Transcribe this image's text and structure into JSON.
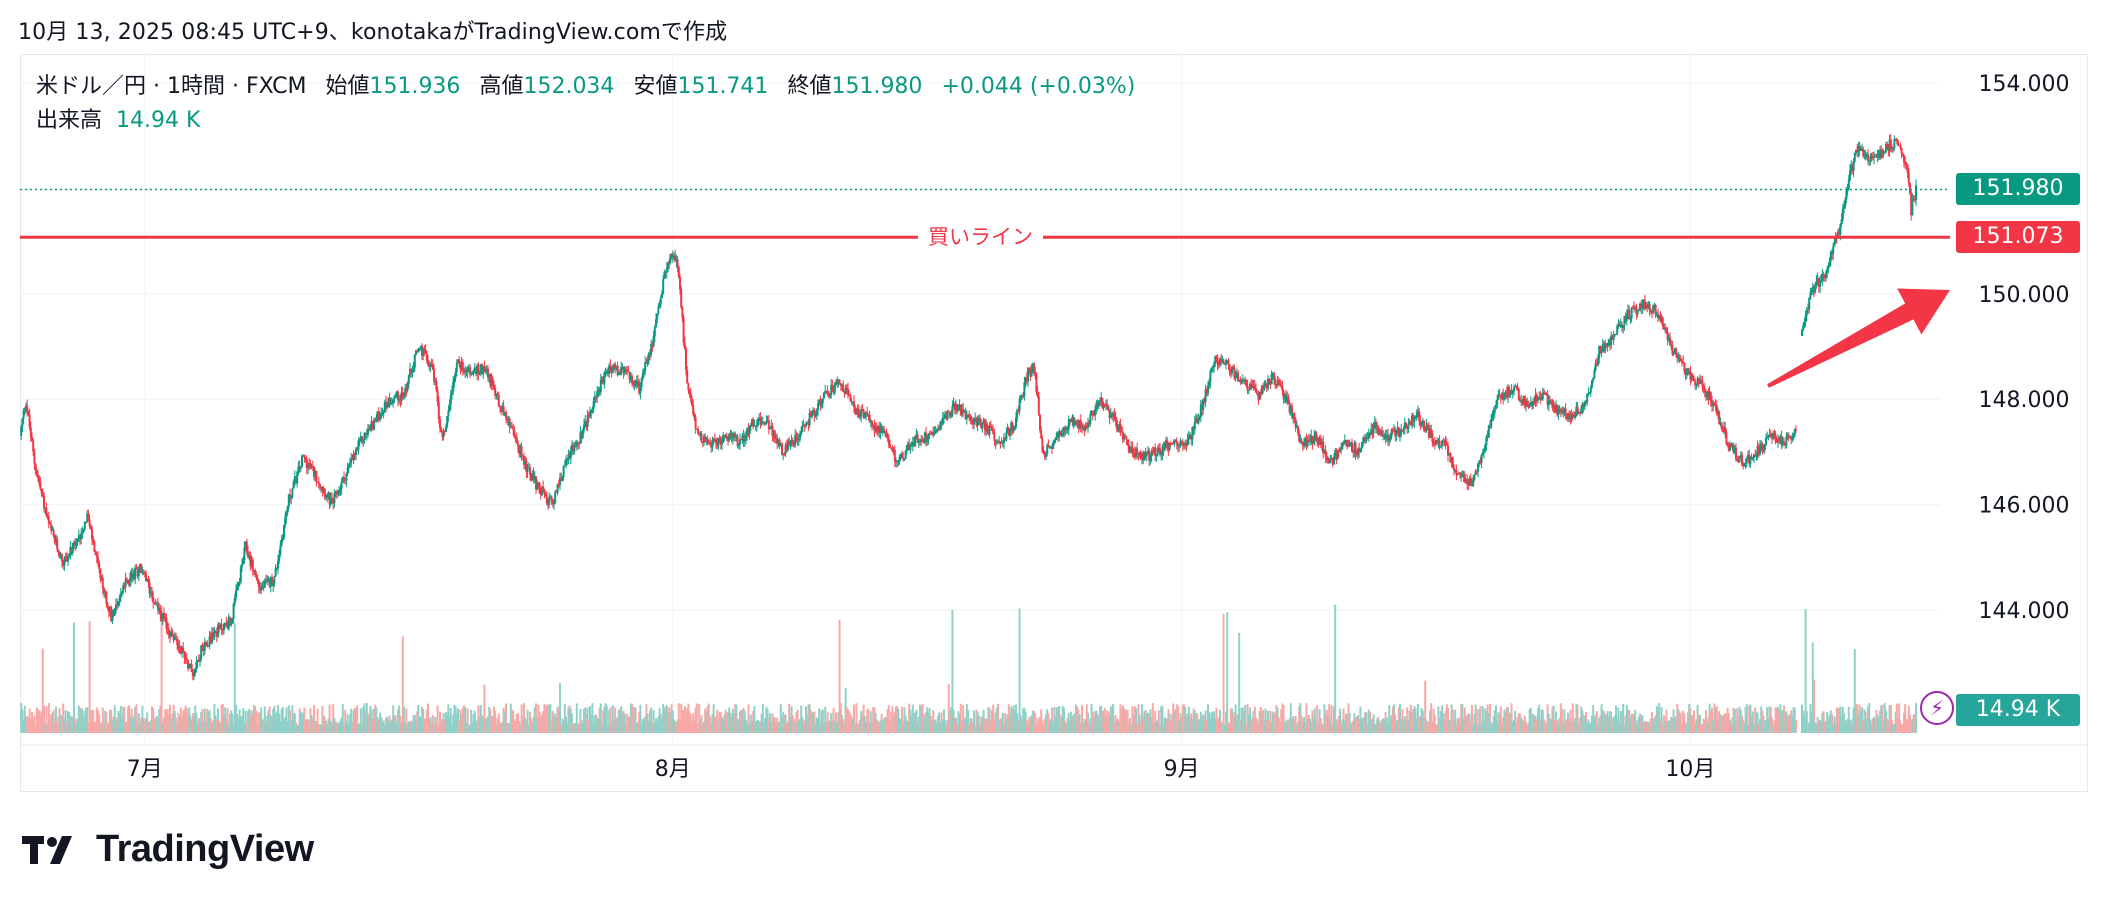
{
  "header": {
    "text": "10月 13, 2025 08:45 UTC+9、konotakaがTradingView.comで作成"
  },
  "legend": {
    "symbol": "米ドル／円 · 1時間 · FXCM",
    "open_label": "始値",
    "open": "151.936",
    "high_label": "高値",
    "high": "152.034",
    "low_label": "安値",
    "low": "151.741",
    "close_label": "終値",
    "close": "151.980",
    "change": "+0.044 (+0.03%)",
    "volume_label": "出来高",
    "volume": "14.94 K"
  },
  "price_tags": {
    "last": "151.980",
    "buy_line": "151.073",
    "volume": "14.94 K"
  },
  "buy_line_label": "買いライン",
  "colors": {
    "up": "#089981",
    "down": "#f23645",
    "buy_line": "#f23645",
    "arrow": "#f23645",
    "volume_up": "#8fd1c8",
    "volume_down": "#f7a9a7",
    "grid": "#f0f3fa",
    "axis_text": "#131722"
  },
  "logo": {
    "text": "TradingView"
  },
  "chart_data": {
    "type": "candlestick",
    "timeframe": "1時間",
    "y_ticks": [
      "154.000",
      "150.000",
      "148.000",
      "146.000",
      "144.000"
    ],
    "ylim": [
      142.2,
      154.5
    ],
    "x_ticks": [
      "7月",
      "8月",
      "9月",
      "10月"
    ],
    "last_price": 151.98,
    "buy_line": 151.073,
    "path": [
      [
        0,
        147.3
      ],
      [
        0.6,
        148.0
      ],
      [
        1.5,
        146.8
      ],
      [
        3,
        145.6
      ],
      [
        4.5,
        144.9
      ],
      [
        6,
        145.3
      ],
      [
        7,
        145.8
      ],
      [
        8.5,
        144.5
      ],
      [
        9.5,
        143.9
      ],
      [
        11,
        144.5
      ],
      [
        12.5,
        144.8
      ],
      [
        14,
        144.2
      ],
      [
        15.5,
        143.6
      ],
      [
        17,
        143.2
      ],
      [
        18,
        142.8
      ],
      [
        19,
        143.3
      ],
      [
        20.5,
        143.6
      ],
      [
        22,
        143.8
      ],
      [
        23.5,
        145.2
      ],
      [
        25,
        144.4
      ],
      [
        26.5,
        144.6
      ],
      [
        28,
        146.1
      ],
      [
        29.5,
        146.9
      ],
      [
        31,
        146.5
      ],
      [
        32.5,
        146.0
      ],
      [
        34,
        146.6
      ],
      [
        35.5,
        147.2
      ],
      [
        37,
        147.6
      ],
      [
        38.5,
        148.0
      ],
      [
        40,
        148.1
      ],
      [
        41.5,
        149.0
      ],
      [
        43,
        148.6
      ],
      [
        44,
        147.2
      ],
      [
        45.5,
        148.7
      ],
      [
        47,
        148.5
      ],
      [
        48.5,
        148.6
      ],
      [
        50,
        147.9
      ],
      [
        51.5,
        147.3
      ],
      [
        53,
        146.6
      ],
      [
        54.5,
        146.2
      ],
      [
        55.5,
        146.0
      ],
      [
        57,
        146.9
      ],
      [
        58.5,
        147.3
      ],
      [
        60,
        148.1
      ],
      [
        61.5,
        148.6
      ],
      [
        63,
        148.5
      ],
      [
        64.5,
        148.2
      ],
      [
        66,
        149.2
      ],
      [
        67.5,
        150.7
      ],
      [
        68.5,
        150.6
      ],
      [
        69.5,
        148.3
      ],
      [
        70.5,
        147.4
      ],
      [
        72,
        147.1
      ],
      [
        73.5,
        147.3
      ],
      [
        75,
        147.2
      ],
      [
        76.5,
        147.6
      ],
      [
        78,
        147.5
      ],
      [
        79.5,
        147.0
      ],
      [
        81,
        147.3
      ],
      [
        82.5,
        147.7
      ],
      [
        84,
        148.1
      ],
      [
        85.5,
        148.3
      ],
      [
        87,
        147.8
      ],
      [
        88.5,
        147.6
      ],
      [
        90,
        147.3
      ],
      [
        91.5,
        146.8
      ],
      [
        93,
        147.2
      ],
      [
        94.5,
        147.3
      ],
      [
        96,
        147.6
      ],
      [
        97.5,
        147.9
      ],
      [
        99,
        147.6
      ],
      [
        100.5,
        147.5
      ],
      [
        102,
        147.2
      ],
      [
        103.5,
        147.5
      ],
      [
        105,
        148.5
      ],
      [
        105.7,
        148.6
      ],
      [
        106.5,
        146.9
      ],
      [
        108,
        147.3
      ],
      [
        109.5,
        147.6
      ],
      [
        111,
        147.5
      ],
      [
        112.5,
        148.0
      ],
      [
        114,
        147.6
      ],
      [
        115.5,
        147.1
      ],
      [
        117,
        146.9
      ],
      [
        118.5,
        147.0
      ],
      [
        120,
        147.2
      ],
      [
        121.5,
        147.1
      ],
      [
        123,
        147.8
      ],
      [
        124.5,
        148.8
      ],
      [
        126,
        148.6
      ],
      [
        127.5,
        148.3
      ],
      [
        129,
        148.1
      ],
      [
        130.5,
        148.4
      ],
      [
        132,
        148.0
      ],
      [
        133.5,
        147.1
      ],
      [
        135,
        147.3
      ],
      [
        136.5,
        146.8
      ],
      [
        138,
        147.2
      ],
      [
        139.5,
        147.0
      ],
      [
        141,
        147.5
      ],
      [
        142.5,
        147.3
      ],
      [
        144,
        147.4
      ],
      [
        145.5,
        147.7
      ],
      [
        147,
        147.3
      ],
      [
        148.5,
        147.1
      ],
      [
        150,
        146.5
      ],
      [
        151.3,
        146.4
      ],
      [
        152.5,
        147.1
      ],
      [
        154,
        148.0
      ],
      [
        155.5,
        148.2
      ],
      [
        157,
        147.9
      ],
      [
        158.5,
        148.1
      ],
      [
        160,
        147.8
      ],
      [
        161.5,
        147.7
      ],
      [
        163,
        147.9
      ],
      [
        164.5,
        148.9
      ],
      [
        166,
        149.2
      ],
      [
        167.5,
        149.6
      ],
      [
        169,
        149.8
      ],
      [
        170.5,
        149.7
      ],
      [
        172,
        149.0
      ],
      [
        173.5,
        148.5
      ],
      [
        175,
        148.3
      ],
      [
        176.5,
        147.9
      ],
      [
        178,
        147.1
      ],
      [
        179.5,
        146.8
      ],
      [
        181,
        147.0
      ],
      [
        182.5,
        147.3
      ],
      [
        184,
        147.2
      ],
      [
        185,
        147.4
      ]
    ],
    "rally_path": [
      [
        185.5,
        149.2
      ],
      [
        186.5,
        150.0
      ],
      [
        188,
        150.4
      ],
      [
        189.5,
        151.2
      ],
      [
        190.5,
        152.2
      ],
      [
        191.5,
        152.8
      ],
      [
        193,
        152.5
      ],
      [
        194.5,
        152.8
      ],
      [
        195.5,
        152.9
      ],
      [
        196.5,
        152.5
      ],
      [
        197,
        151.6
      ],
      [
        197.5,
        151.98
      ]
    ],
    "x_tick_positions": [
      13,
      68,
      121,
      174
    ],
    "x_domain": [
      0,
      200
    ],
    "volume": {
      "last": 14.94,
      "unit": "K"
    }
  }
}
